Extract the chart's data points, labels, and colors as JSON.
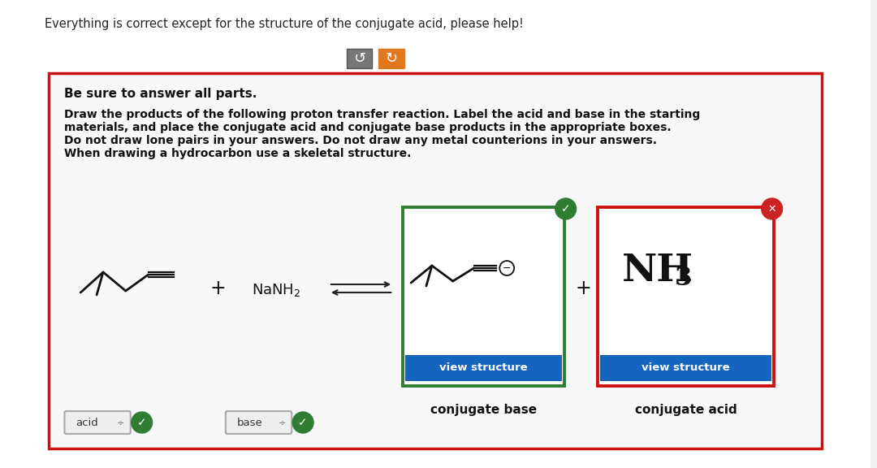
{
  "title_text": "Everything is correct except for the structure of the conjugate acid, please help!",
  "instruction_line1": "Be sure to answer all parts.",
  "instruction_lines": [
    "Draw the products of the following proton transfer reaction. Label the acid and base in the starting",
    "materials, and place the conjugate acid and conjugate base products in the appropriate boxes.",
    "Do not draw lone pairs in your answers. Do not draw any metal counterions in your answers.",
    "When drawing a hydrocarbon use a skeletal structure."
  ],
  "conj_base_label": "conjugate base",
  "conj_acid_label": "conjugate acid",
  "view_structure_text": "view structure",
  "acid_label": "acid",
  "base_label": "base",
  "bg_color": "#ffffff",
  "page_bg": "#f0f0f0",
  "outer_box_color": "#cc1111",
  "conj_base_box_color": "#2e7d32",
  "conj_acid_box_color": "#cc1111",
  "btn_color": "#1565c0",
  "btn_text_color": "#ffffff",
  "check_color": "#2e7d32",
  "x_btn_color": "#cc2222",
  "arrow_color": "#222222",
  "skeleton_color": "#111111",
  "undo_btn_color": "#777777",
  "redo_btn_color": "#e07820"
}
